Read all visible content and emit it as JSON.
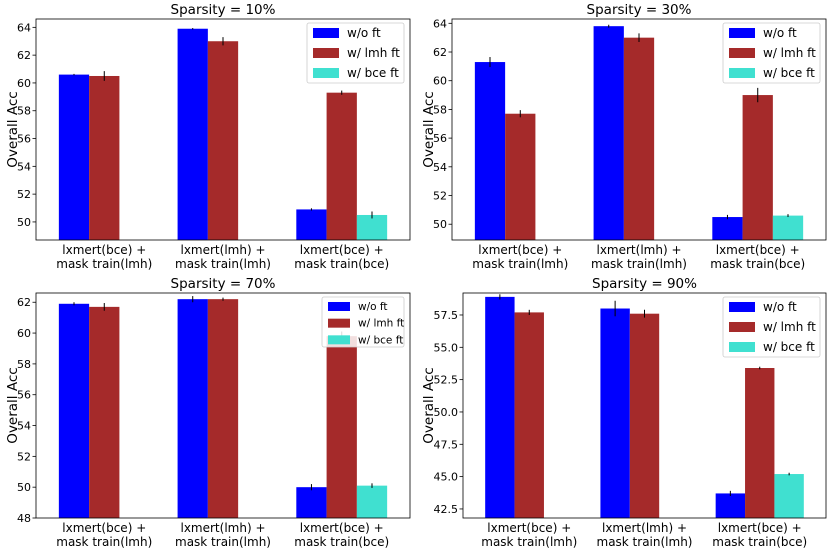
{
  "colors": {
    "wo_ft": "#0000ff",
    "lmh_ft": "#a52a2a",
    "bce_ft": "#40e0d0",
    "err": "#000000"
  },
  "chart_data": [
    {
      "type": "bar",
      "title": "Sparsity = 10%",
      "ylabel": "Overall Acc",
      "ylim": [
        48.7,
        64.6
      ],
      "yticks": [
        50,
        52,
        54,
        56,
        58,
        60,
        62,
        64
      ],
      "tick_labels": [
        "50",
        "52",
        "54",
        "56",
        "58",
        "60",
        "62",
        "64"
      ],
      "categories": [
        [
          "lxmert(bce) +",
          "mask train(lmh)"
        ],
        [
          "lxmert(lmh) +",
          "mask train(lmh)"
        ],
        [
          "lxmert(bce) +",
          "mask train(bce)"
        ]
      ],
      "legend_position": "top-right",
      "series": [
        {
          "name": "w/o ft",
          "values": [
            60.6,
            63.9,
            50.9
          ],
          "errors": [
            0.05,
            0.05,
            0.08
          ]
        },
        {
          "name": "w/ lmh ft",
          "values": [
            60.5,
            63.0,
            59.3
          ],
          "errors": [
            0.35,
            0.3,
            0.15
          ]
        },
        {
          "name": "w/ bce ft",
          "values": [
            null,
            null,
            50.5
          ],
          "errors": [
            null,
            null,
            0.25
          ]
        }
      ]
    },
    {
      "type": "bar",
      "title": "Sparsity = 30%",
      "ylabel": "Overall Acc",
      "ylim": [
        48.9,
        64.3
      ],
      "yticks": [
        50,
        52,
        54,
        56,
        58,
        60,
        62,
        64
      ],
      "tick_labels": [
        "50",
        "52",
        "54",
        "56",
        "58",
        "60",
        "62",
        "64"
      ],
      "categories": [
        [
          "lxmert(bce) +",
          "mask train(lmh)"
        ],
        [
          "lxmert(lmh) +",
          "mask train(lmh)"
        ],
        [
          "lxmert(bce) +",
          "mask train(bce)"
        ]
      ],
      "legend_position": "top-right",
      "series": [
        {
          "name": "w/o ft",
          "values": [
            61.3,
            63.8,
            50.5
          ],
          "errors": [
            0.35,
            0.1,
            0.15
          ]
        },
        {
          "name": "w/ lmh ft",
          "values": [
            57.7,
            63.0,
            59.0
          ],
          "errors": [
            0.25,
            0.3,
            0.5
          ]
        },
        {
          "name": "w/ bce ft",
          "values": [
            null,
            null,
            50.6
          ],
          "errors": [
            null,
            null,
            0.1
          ]
        }
      ]
    },
    {
      "type": "bar",
      "title": "Sparsity = 70%",
      "ylabel": "Overall Acc",
      "ylim": [
        48,
        62.6
      ],
      "yticks": [
        48,
        50,
        52,
        54,
        56,
        58,
        60,
        62
      ],
      "tick_labels": [
        "48",
        "50",
        "52",
        "54",
        "56",
        "58",
        "60",
        "62"
      ],
      "categories": [
        [
          "lxmert(bce) +",
          "mask train(lmh)"
        ],
        [
          "lxmert(lmh) +",
          "mask train(lmh)"
        ],
        [
          "lxmert(bce) +",
          "mask train(bce)"
        ]
      ],
      "legend_position": "top-right",
      "legend_small": true,
      "series": [
        {
          "name": "w/o ft",
          "values": [
            61.9,
            62.2,
            50.0
          ],
          "errors": [
            0.1,
            0.2,
            0.2
          ]
        },
        {
          "name": "w/ lmh ft",
          "values": [
            61.7,
            62.2,
            59.8
          ],
          "errors": [
            0.25,
            0.1,
            0.3
          ]
        },
        {
          "name": "w/ bce ft",
          "values": [
            null,
            null,
            50.1
          ],
          "errors": [
            null,
            null,
            0.15
          ]
        }
      ]
    },
    {
      "type": "bar",
      "title": "Sparsity = 90%",
      "ylabel": "Overall Acc",
      "ylim": [
        41.8,
        59.2
      ],
      "yticks": [
        42.5,
        45.0,
        47.5,
        50.0,
        52.5,
        55.0,
        57.5
      ],
      "tick_labels": [
        "42.5",
        "45.0",
        "47.5",
        "50.0",
        "52.5",
        "55.0",
        "57.5"
      ],
      "categories": [
        [
          "lxmert(bce) +",
          "mask train(lmh)"
        ],
        [
          "lxmert(lmh) +",
          "mask train(lmh)"
        ],
        [
          "lxmert(bce) +",
          "mask train(bce)"
        ]
      ],
      "legend_position": "top-right",
      "series": [
        {
          "name": "w/o ft",
          "values": [
            58.9,
            58.0,
            43.7
          ],
          "errors": [
            0.2,
            0.6,
            0.2
          ]
        },
        {
          "name": "w/ lmh ft",
          "values": [
            57.7,
            57.6,
            53.4
          ],
          "errors": [
            0.2,
            0.3,
            0.1
          ]
        },
        {
          "name": "w/ bce ft",
          "values": [
            null,
            null,
            45.2
          ],
          "errors": [
            null,
            null,
            0.1
          ]
        }
      ]
    }
  ]
}
